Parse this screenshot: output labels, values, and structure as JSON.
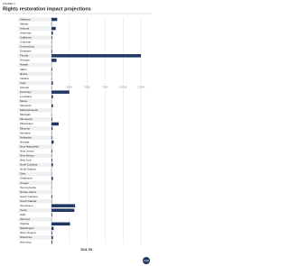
{
  "chart_data": {
    "type": "barh",
    "figure_label": "FIGURE 1",
    "title": "Rights restoration impact projections",
    "categories": [
      "Alabama",
      "Alaska",
      "Arizona",
      "Arkansas",
      "California",
      "Colorado",
      "Connecticut",
      "Delaware",
      "Florida",
      "Georgia",
      "Hawaii",
      "Idaho",
      "Illinois",
      "Indiana",
      "Iowa",
      "Kansas",
      "Kentucky",
      "Louisiana",
      "Maine",
      "Maryland",
      "Massachusetts",
      "Michigan",
      "Minnesota",
      "Mississippi",
      "Missouri",
      "Montana",
      "Nebraska",
      "Nevada",
      "New Hampshire",
      "New Jersey",
      "New Mexico",
      "New York",
      "North Carolina",
      "North Dakota",
      "Ohio",
      "Oklahoma",
      "Oregon",
      "Pennsylvania",
      "Rhode Island",
      "South Carolina",
      "South Dakota",
      "Tennessee",
      "Texas",
      "Utah",
      "Vermont",
      "Virginia",
      "Washington",
      "West Virginia",
      "Wisconsin",
      "Wyoming"
    ],
    "values": [
      80000,
      5000,
      60000,
      20000,
      10000,
      5000,
      5000,
      10000,
      1250000,
      70000,
      2000,
      10000,
      5000,
      5000,
      20000,
      5000,
      250000,
      20000,
      2000,
      20000,
      2000,
      5000,
      10000,
      100000,
      15000,
      5000,
      10000,
      30000,
      2000,
      10000,
      5000,
      10000,
      20000,
      2000,
      5000,
      20000,
      5000,
      5000,
      2000,
      10000,
      5000,
      330000,
      320000,
      10000,
      2000,
      260000,
      30000,
      10000,
      20000,
      10000
    ],
    "color": "#1f3864",
    "xlim": [
      0,
      1300000
    ],
    "xticks": [
      {
        "value": 250000,
        "label": "250K"
      },
      {
        "value": 500000,
        "label": "500K"
      },
      {
        "value": 750000,
        "label": "750K"
      },
      {
        "value": 1000000,
        "label": "1,000K"
      },
      {
        "value": 1250000,
        "label": "1,250K"
      }
    ],
    "grid": true,
    "annotation": "514.7K",
    "logo": "CAP"
  }
}
